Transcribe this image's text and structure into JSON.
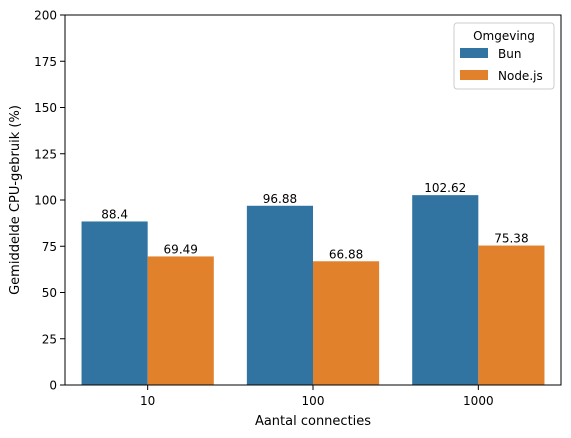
{
  "chart_data": {
    "type": "bar",
    "categories": [
      "10",
      "100",
      "1000"
    ],
    "series": [
      {
        "name": "Bun",
        "values": [
          88.4,
          96.88,
          102.62
        ],
        "color": "#3274a1"
      },
      {
        "name": "Node.js",
        "values": [
          69.49,
          66.88,
          75.38
        ],
        "color": "#e1812c"
      }
    ],
    "data_labels": [
      [
        "88.4",
        "96.88",
        "102.62"
      ],
      [
        "69.49",
        "66.88",
        "75.38"
      ]
    ],
    "xlabel": "Aantal connecties",
    "ylabel": "Gemiddelde CPU-gebruik (%)",
    "ylim": [
      0,
      200
    ],
    "yticks": [
      0,
      25,
      50,
      75,
      100,
      125,
      150,
      175,
      200
    ],
    "legend": {
      "title": "Omgeving",
      "position": "top-right"
    },
    "grid": false
  }
}
